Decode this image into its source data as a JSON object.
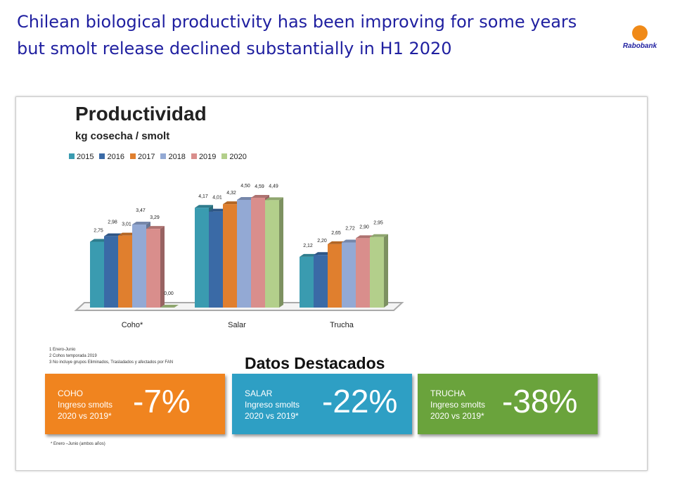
{
  "header": {
    "title": "Chilean biological productivity has been improving for some years but smolt release declined substantially in H1 2020",
    "logo": "Rabobank"
  },
  "chart_data": {
    "type": "bar",
    "title": "Productividad",
    "subtitle": "kg cosecha / smolt",
    "categories": [
      "Coho*",
      "Salar",
      "Trucha"
    ],
    "series": [
      {
        "name": "2015",
        "color": "#3a9bb0",
        "values": [
          2.75,
          4.17,
          2.12
        ],
        "labels": [
          "2,75",
          "4,17",
          "2,12"
        ]
      },
      {
        "name": "2016",
        "color": "#3a6aa6",
        "values": [
          2.98,
          4.01,
          2.2
        ],
        "labels": [
          "2,98",
          "4,01",
          "2,20"
        ]
      },
      {
        "name": "2017",
        "color": "#e07f2e",
        "values": [
          3.01,
          4.32,
          2.65
        ],
        "labels": [
          "3,01",
          "4,32",
          "2,65"
        ]
      },
      {
        "name": "2018",
        "color": "#93a9d4",
        "values": [
          3.47,
          4.5,
          2.72
        ],
        "labels": [
          "3,47",
          "4,50",
          "2,72"
        ]
      },
      {
        "name": "2019",
        "color": "#d98e8c",
        "values": [
          3.29,
          4.59,
          2.9
        ],
        "labels": [
          "3,29",
          "4,59",
          "2,90"
        ]
      },
      {
        "name": "2020",
        "color": "#b3cf8b",
        "values": [
          0.0,
          4.49,
          2.95
        ],
        "labels": [
          "0,00",
          "4,49",
          "2,95"
        ]
      }
    ],
    "legend": "top-left"
  },
  "notes": [
    "1 Enero-Junio",
    "2 Cohos temporada 2019",
    "3 No incluye grupos Eliminados, Trasladados y afectados por FAN"
  ],
  "highlights": {
    "title": "Datos Destacados",
    "items": [
      {
        "species": "COHO",
        "line1": "Ingreso smolts",
        "line2": "2020 vs 2019*",
        "value": "-7%",
        "color": "#f0841f"
      },
      {
        "species": "SALAR",
        "line1": "Ingreso smolts",
        "line2": "2020 vs 2019*",
        "value": "-22%",
        "color": "#2e9fc4"
      },
      {
        "species": "TRUCHA",
        "line1": "Ingreso smolts",
        "line2": "2020 vs 2019*",
        "value": "-38%",
        "color": "#6aa33c"
      }
    ],
    "footnote": "* Enero –Junio (ambos años)"
  }
}
